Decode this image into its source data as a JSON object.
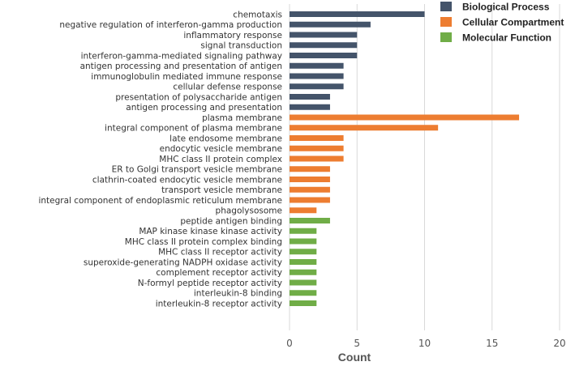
{
  "chart_data": {
    "type": "bar",
    "orientation": "horizontal",
    "xlabel": "Count",
    "ylabel": "",
    "xlim": [
      0,
      20
    ],
    "xticks": [
      0,
      5,
      10,
      15,
      20
    ],
    "grid": true,
    "legend_position": "top-right",
    "series": [
      {
        "name": "Biological Process",
        "color": "#44546a",
        "items": [
          {
            "label": "chemotaxis",
            "value": 10
          },
          {
            "label": "negative regulation of interferon-gamma production",
            "value": 6
          },
          {
            "label": "inflammatory response",
            "value": 5
          },
          {
            "label": "signal transduction",
            "value": 5
          },
          {
            "label": "interferon-gamma-mediated signaling pathway",
            "value": 5
          },
          {
            "label": "antigen processing and presentation of antigen",
            "value": 4
          },
          {
            "label": "immunoglobulin mediated immune response",
            "value": 4
          },
          {
            "label": "cellular defense response",
            "value": 4
          },
          {
            "label": "presentation of polysaccharide antigen",
            "value": 3
          },
          {
            "label": "antigen processing and presentation",
            "value": 3
          }
        ]
      },
      {
        "name": "Cellular Compartment",
        "color": "#ed7d31",
        "items": [
          {
            "label": "plasma membrane",
            "value": 17
          },
          {
            "label": "integral component of plasma membrane",
            "value": 11
          },
          {
            "label": "late endosome membrane",
            "value": 4
          },
          {
            "label": "endocytic vesicle membrane",
            "value": 4
          },
          {
            "label": "MHC class II protein complex",
            "value": 4
          },
          {
            "label": "ER to Golgi transport vesicle membrane",
            "value": 3
          },
          {
            "label": "clathrin-coated endocytic vesicle membrane",
            "value": 3
          },
          {
            "label": "transport vesicle membrane",
            "value": 3
          },
          {
            "label": "integral component of endoplasmic reticulum membrane",
            "value": 3
          },
          {
            "label": "phagolysosome",
            "value": 2
          }
        ]
      },
      {
        "name": "Molecular Function",
        "color": "#70ad47",
        "items": [
          {
            "label": "peptide antigen binding",
            "value": 3
          },
          {
            "label": "MAP kinase kinase kinase activity",
            "value": 2
          },
          {
            "label": "MHC class II protein complex binding",
            "value": 2
          },
          {
            "label": "MHC class II receptor activity",
            "value": 2
          },
          {
            "label": "superoxide-generating NADPH oxidase activity",
            "value": 2
          },
          {
            "label": "complement receptor activity",
            "value": 2
          },
          {
            "label": "N-formyl peptide receptor activity",
            "value": 2
          },
          {
            "label": "interleukin-8 binding",
            "value": 2
          },
          {
            "label": "interleukin-8 receptor activity",
            "value": 2
          }
        ]
      }
    ]
  }
}
